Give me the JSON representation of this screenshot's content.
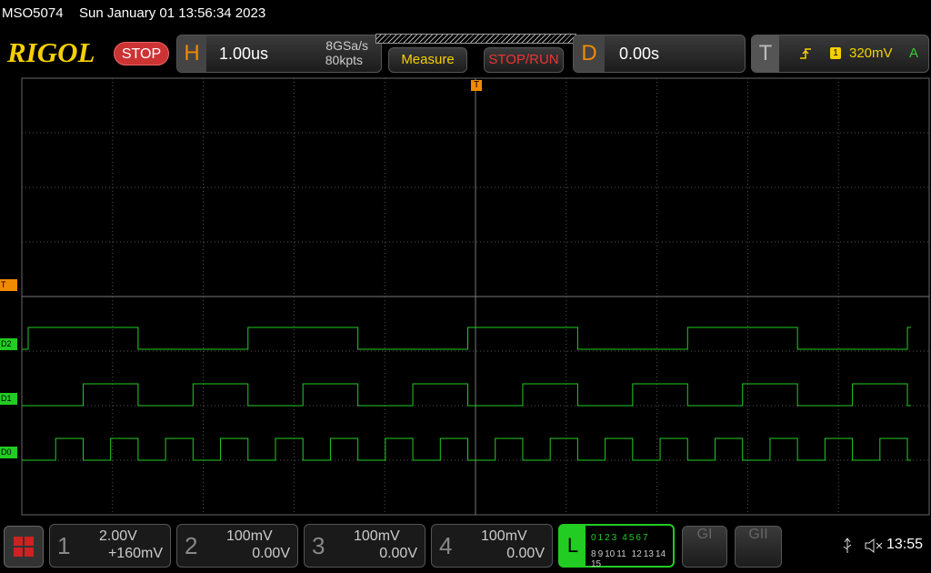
{
  "status_bar": {
    "model": "MSO5074",
    "datetime": "Sun January 01 13:56:34 2023"
  },
  "toolbar": {
    "logo": "RIGOL",
    "run_state": "STOP",
    "horizontal": {
      "label": "H",
      "timebase": "1.00us",
      "sample_rate": "8GSa/s",
      "memory_depth": "80kpts"
    },
    "measure_button": "Measure",
    "stop_run_button": "STOP/RUN",
    "delay": {
      "label": "D",
      "value": "0.00s"
    },
    "trigger": {
      "label": "T",
      "source": "1",
      "level": "320mV",
      "mode": "A"
    }
  },
  "markers": {
    "trigger_position": "T",
    "trigger_level": "T",
    "channels": [
      "D2",
      "D1",
      "D0"
    ]
  },
  "bottom_bar": {
    "channels": [
      {
        "number": "1",
        "scale": "2.00V",
        "offset": "+160mV"
      },
      {
        "number": "2",
        "scale": "100mV",
        "offset": "0.00V"
      },
      {
        "number": "3",
        "scale": "100mV",
        "offset": "0.00V"
      },
      {
        "number": "4",
        "scale": "100mV",
        "offset": "0.00V"
      }
    ],
    "logic": {
      "label": "L",
      "row1": [
        "0",
        "1",
        "2",
        "3",
        "4",
        "5",
        "6",
        "7"
      ],
      "row2": [
        "8",
        "9",
        "10",
        "11",
        "12",
        "13",
        "14",
        "15"
      ]
    },
    "gi": "GI",
    "gii": "GII",
    "time": "13:55"
  }
}
